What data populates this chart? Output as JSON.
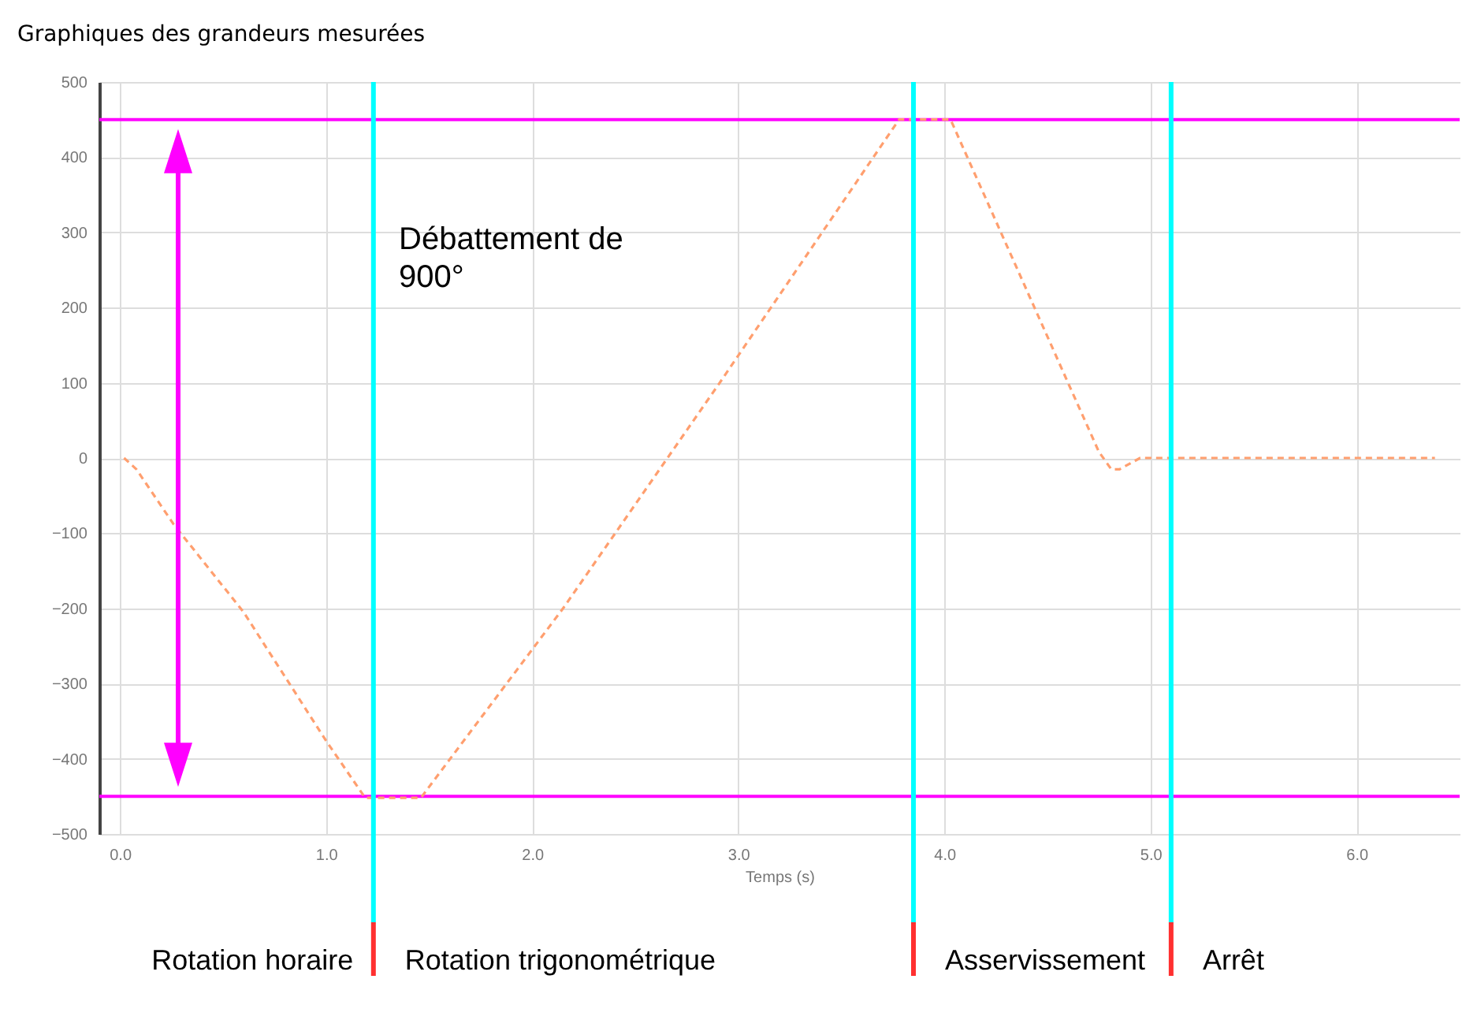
{
  "chart_data": {
    "type": "line",
    "title": "Graphiques des grandeurs mesurées",
    "xlabel": "Temps (s)",
    "x": [
      0.02,
      0.08,
      0.26,
      0.6,
      1.0,
      1.19,
      1.25,
      1.46,
      2.15,
      2.91,
      3.78,
      4.03,
      4.6,
      4.75,
      4.81,
      4.85,
      4.95,
      6.38
    ],
    "series": [
      {
        "color": "#ff9f6f",
        "values": [
          0,
          -15,
          -88,
          -205,
          -376,
          -452,
          -452,
          -452,
          -200,
          100,
          450,
          450,
          100,
          8,
          -15,
          -15,
          0,
          0
        ]
      }
    ],
    "xlim": [
      -0.1,
      6.5
    ],
    "xticks": [
      {
        "value": 0,
        "label": "0.0"
      },
      {
        "value": 1,
        "label": "1.0"
      },
      {
        "value": 2,
        "label": "2.0"
      },
      {
        "value": 3,
        "label": "3.0"
      },
      {
        "value": 4,
        "label": "4.0"
      },
      {
        "value": 5,
        "label": "5.0"
      },
      {
        "value": 6,
        "label": "6.0"
      }
    ],
    "ylim": [
      -500,
      500
    ],
    "yticks": [
      -500,
      -400,
      -300,
      -200,
      -100,
      0,
      100,
      200,
      300,
      400,
      500
    ],
    "grid": true,
    "line_style": "dashed",
    "ref_lines": [
      {
        "axis": "y",
        "value": 450,
        "color": "#ff00ff"
      },
      {
        "axis": "y",
        "value": -450,
        "color": "#ff00ff"
      },
      {
        "axis": "x",
        "value": 1.23,
        "color": "#00ffff"
      },
      {
        "axis": "x",
        "value": 3.85,
        "color": "#00ffff"
      },
      {
        "axis": "x",
        "value": 5.1,
        "color": "#00ffff"
      }
    ],
    "annotations": [
      "Débattement de 900°",
      "Rotation horaire",
      "Rotation trigonométrique",
      "Asservissement",
      "Arrêt"
    ]
  }
}
